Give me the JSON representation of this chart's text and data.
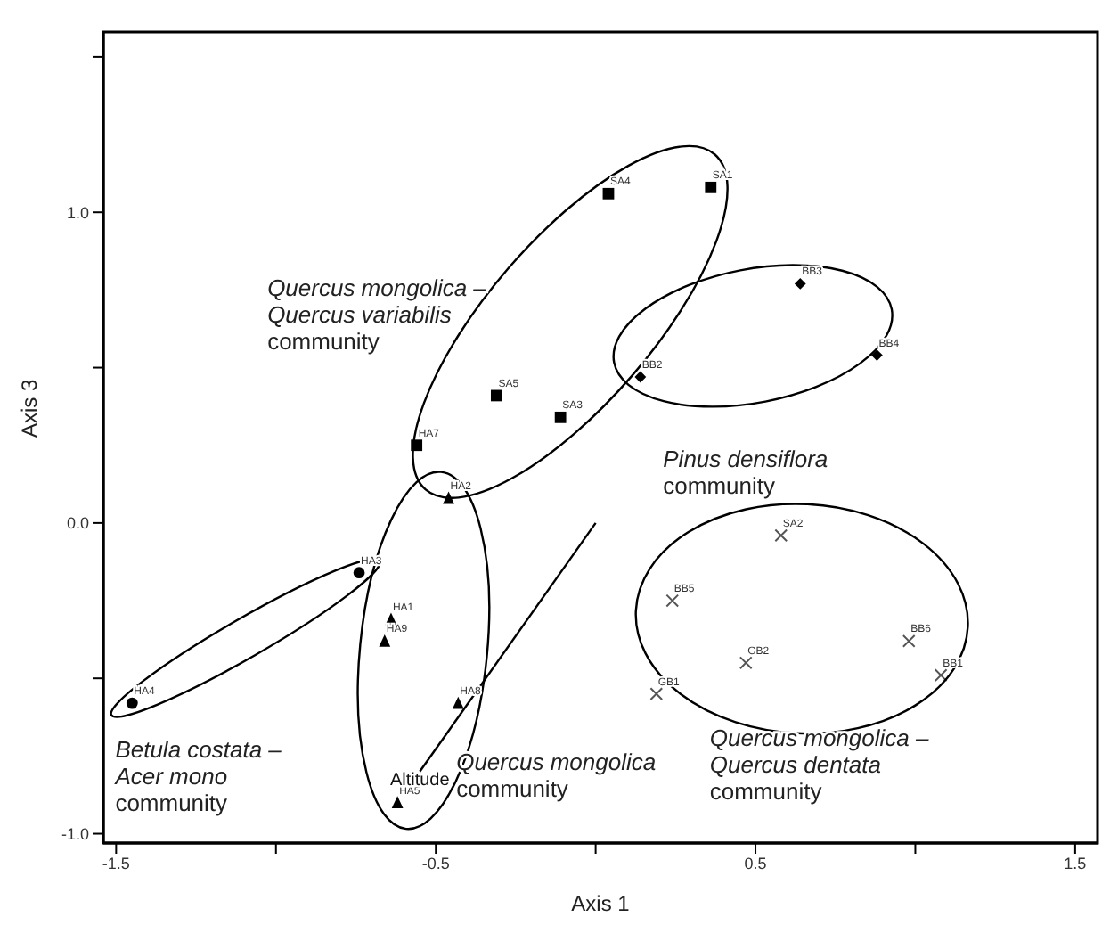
{
  "chart_data": {
    "type": "scatter",
    "xlabel": "Axis 1",
    "ylabel": "Axis 3",
    "xlim": [
      -1.54,
      1.57
    ],
    "ylim": [
      -1.03,
      1.58
    ],
    "xticks": [
      -1.5,
      {
        "value": -1,
        "label": null
      },
      -0.5,
      {
        "value": 0,
        "label": null
      },
      0.5,
      {
        "value": 1,
        "label": null
      },
      1.5
    ],
    "yticks": [
      {
        "value": -1,
        "label": "-1.0"
      },
      {
        "value": -0.5,
        "label": null
      },
      {
        "value": 0,
        "label": "0.0"
      },
      {
        "value": 0.5,
        "label": null
      },
      {
        "value": 1,
        "label": "1.0"
      },
      {
        "value": 1.5,
        "label": null
      }
    ],
    "grid": false,
    "series": [
      {
        "color": "#000000",
        "marker": "square",
        "x": [
          0.36,
          0.04,
          -0.31,
          -0.11,
          -0.56
        ],
        "values": [
          1.08,
          1.06,
          0.41,
          0.34,
          0.25
        ],
        "value_labels": [
          "SA1",
          "SA4",
          "SA5",
          "SA3",
          "HA7"
        ]
      },
      {
        "color": "#000000",
        "marker": "diamond",
        "x": [
          0.64,
          0.88,
          0.14
        ],
        "values": [
          0.77,
          0.54,
          0.47
        ],
        "value_labels": [
          "BB3",
          "BB4",
          "BB2"
        ]
      },
      {
        "color": "#000000",
        "marker": "triangle",
        "x": [
          -0.46,
          -0.64,
          -0.66,
          -0.43,
          -0.62
        ],
        "values": [
          0.08,
          -0.31,
          -0.38,
          -0.58,
          -0.9
        ],
        "value_labels": [
          "HA2",
          "HA1",
          "HA9",
          "HA8",
          "HA5"
        ]
      },
      {
        "color": "#000000",
        "marker": "circle",
        "x": [
          -0.74,
          -1.45
        ],
        "values": [
          -0.16,
          -0.58
        ],
        "value_labels": [
          "HA3",
          "HA4"
        ]
      },
      {
        "color": "#555555",
        "marker": "cross",
        "x": [
          0.58,
          0.24,
          0.47,
          0.98,
          1.08,
          0.19
        ],
        "values": [
          -0.04,
          -0.25,
          -0.45,
          -0.38,
          -0.49,
          -0.55
        ],
        "value_labels": [
          "SA2",
          "BB5",
          "GB2",
          "BB6",
          "BB1",
          "GB1"
        ]
      },
      {
        "type": "line",
        "color": "#000000",
        "marker": "none",
        "x": [
          0,
          -0.55
        ],
        "values": [
          0,
          -0.8
        ]
      }
    ],
    "annotations": [
      "Quercus mongolica –\nQuercus variabilis\ncommunity",
      "Pinus densiflora\ncommunity",
      "Betula costata –\nAcer mono\ncommunity",
      "Quercus mongolica\ncommunity",
      "Quercus mongolica –\nQuercus dentata\ncommunity",
      {
        "text": "Altitude",
        "x": -0.55,
        "y": -0.82
      }
    ]
  }
}
